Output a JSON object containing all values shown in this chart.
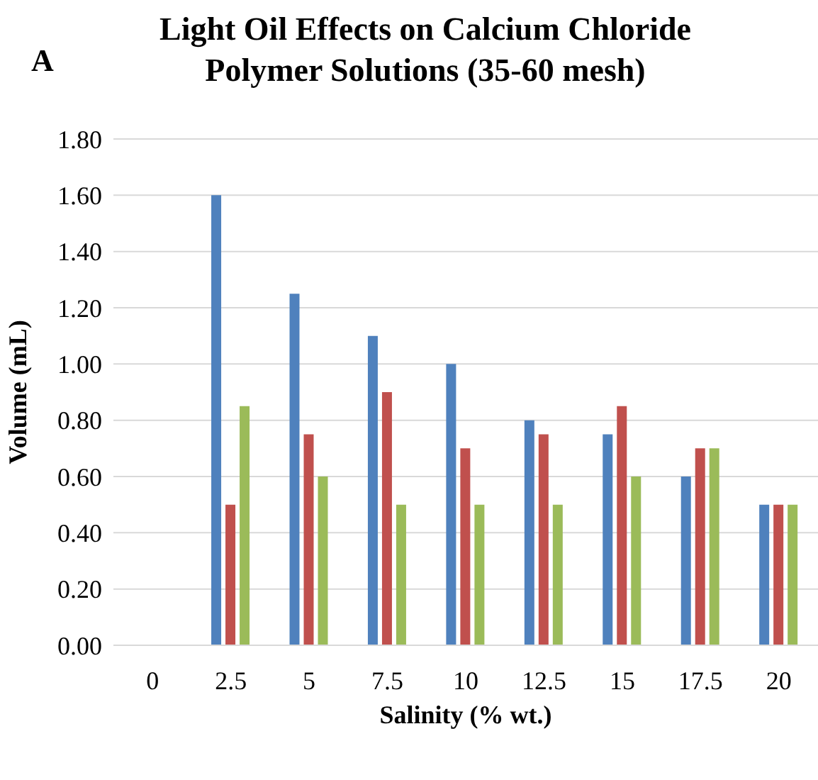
{
  "chart_data": {
    "type": "bar",
    "title": "Light Oil Effects on Calcium Chloride Polymer Solutions (35-60 mesh)",
    "xlabel": "Salinity (% wt.)",
    "ylabel": "Volume (mL)",
    "annotations": [
      "A"
    ],
    "categories": [
      "0",
      "2.5",
      "5",
      "7.5",
      "10",
      "12.5",
      "15",
      "17.5",
      "20"
    ],
    "series": [
      {
        "color": "#4f81bd",
        "values": [
          null,
          1.6,
          1.25,
          1.1,
          1.0,
          0.8,
          0.75,
          0.6,
          0.5
        ]
      },
      {
        "color": "#c0504d",
        "values": [
          null,
          0.5,
          0.75,
          0.9,
          0.7,
          0.75,
          0.85,
          0.7,
          0.5
        ]
      },
      {
        "color": "#9bbb59",
        "values": [
          null,
          0.85,
          0.6,
          0.5,
          0.5,
          0.5,
          0.6,
          0.7,
          0.5
        ]
      }
    ],
    "ylim": [
      0,
      1.8
    ],
    "yticks": [
      {
        "value": 0,
        "label": "0.00"
      },
      {
        "value": 0.2,
        "label": "0.20"
      },
      {
        "value": 0.4,
        "label": "0.40"
      },
      {
        "value": 0.6,
        "label": "0.60"
      },
      {
        "value": 0.8,
        "label": "0.80"
      },
      {
        "value": 1.0,
        "label": "1.00"
      },
      {
        "value": 1.2,
        "label": "1.20"
      },
      {
        "value": 1.4,
        "label": "1.40"
      },
      {
        "value": 1.6,
        "label": "1.60"
      },
      {
        "value": 1.8,
        "label": "1.80"
      }
    ],
    "grid": "y",
    "legend": false
  }
}
